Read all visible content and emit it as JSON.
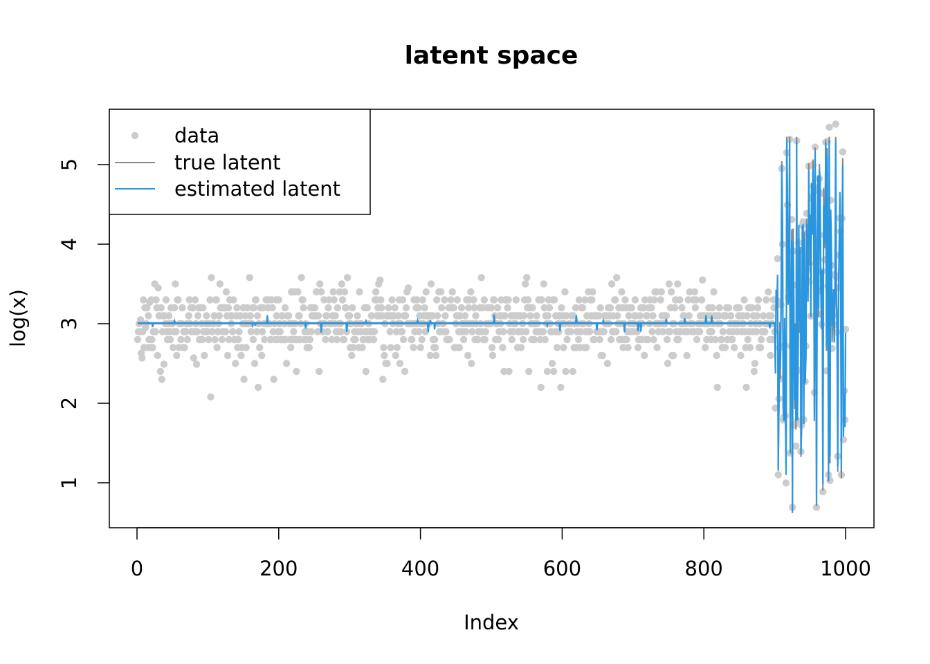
{
  "chart_data": {
    "type": "scatter",
    "title": "latent space",
    "xlabel": "Index",
    "ylabel": "log(x)",
    "xlim": [
      -20,
      1020
    ],
    "ylim": [
      0.45,
      5.7
    ],
    "x_ticks": [
      0,
      200,
      400,
      600,
      800,
      1000
    ],
    "y_ticks": [
      1,
      2,
      3,
      4,
      5
    ],
    "legend": {
      "position": "top-left",
      "entries": [
        {
          "label": "data",
          "kind": "point",
          "color": "#cccccc"
        },
        {
          "label": "true latent",
          "kind": "line",
          "color": "#888888"
        },
        {
          "label": "estimated latent",
          "kind": "line",
          "color": "#2b96e0"
        }
      ]
    },
    "series": [
      {
        "name": "data",
        "kind": "points",
        "color": "#cccccc",
        "n_points": 1000,
        "description_values": {
          "index_range": [
            1,
            1000
          ],
          "regime_1": {
            "index_range": [
              1,
              900
            ],
            "center": 3.0,
            "min": 2.08,
            "max": 3.58
          },
          "regime_2": {
            "index_range": [
              901,
              1000
            ],
            "center": 3.0,
            "min": 0.69,
            "max": 5.51
          }
        },
        "sample_points": [
          [
            5,
            3.05
          ],
          [
            6,
            2.63
          ],
          [
            7,
            2.57
          ],
          [
            12,
            2.95
          ],
          [
            18,
            3.27
          ],
          [
            25,
            3.5
          ],
          [
            30,
            3.45
          ],
          [
            33,
            2.4
          ],
          [
            35,
            2.3
          ],
          [
            38,
            2.49
          ],
          [
            54,
            3.5
          ],
          [
            80,
            2.57
          ],
          [
            84,
            2.49
          ],
          [
            104,
            2.08
          ],
          [
            151,
            2.3
          ],
          [
            171,
            2.2
          ],
          [
            193,
            2.3
          ],
          [
            225,
            2.4
          ],
          [
            297,
            3.58
          ],
          [
            341,
            3.5
          ],
          [
            343,
            3.55
          ],
          [
            347,
            2.3
          ],
          [
            383,
            3.45
          ],
          [
            525,
            2.4
          ],
          [
            570,
            2.2
          ],
          [
            598,
            2.2
          ],
          [
            605,
            2.4
          ],
          [
            670,
            3.5
          ],
          [
            798,
            3.55
          ],
          [
            819,
            2.2
          ],
          [
            860,
            2.2
          ],
          [
            905,
            1.1
          ],
          [
            910,
            4.95
          ],
          [
            912,
            1.79
          ],
          [
            925,
            0.69
          ],
          [
            931,
            5.3
          ],
          [
            937,
            1.39
          ],
          [
            948,
            4.98
          ],
          [
            957,
            5.22
          ],
          [
            959,
            0.69
          ],
          [
            972,
            5.28
          ],
          [
            976,
            1.1
          ],
          [
            986,
            5.51
          ],
          [
            994,
            1.1
          ],
          [
            996,
            5.16
          ],
          [
            999,
            1.79
          ]
        ]
      },
      {
        "name": "true latent",
        "kind": "line",
        "color": "#888888",
        "description_values": {
          "regime_1": {
            "index_range": [
              1,
              900
            ],
            "value": 3.0
          },
          "regime_2": {
            "index_range": [
              901,
              1000
            ],
            "min": 0.65,
            "max": 5.35
          }
        }
      },
      {
        "name": "estimated latent",
        "kind": "line",
        "color": "#2b96e0",
        "description_values": {
          "regime_1": {
            "index_range": [
              1,
              900
            ],
            "value": 3.01
          },
          "regime_2": {
            "index_range": [
              901,
              1000
            ],
            "min": 0.62,
            "max": 5.3
          }
        }
      }
    ],
    "grid": false
  }
}
